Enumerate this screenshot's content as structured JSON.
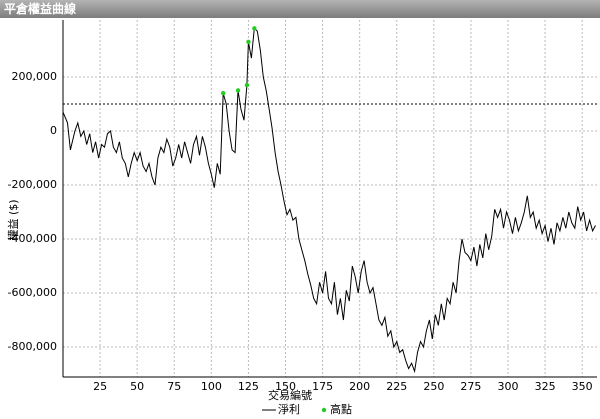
{
  "chart_data": {
    "type": "line",
    "title": "平倉權益曲線",
    "x_label": "交易編號",
    "y_label": "權益 ($)",
    "xlim": [
      0,
      360
    ],
    "ylim": [
      -911000,
      411000
    ],
    "xticks": [
      25,
      50,
      75,
      100,
      125,
      150,
      175,
      200,
      225,
      250,
      275,
      300,
      325,
      350
    ],
    "yticks": [
      {
        "value": 200000,
        "label": "200,000"
      },
      0,
      {
        "value": -200000,
        "label": "-200,000"
      },
      {
        "value": -400000,
        "label": "-400,000"
      },
      {
        "value": -600000,
        "label": "-600,000"
      },
      {
        "value": -800000,
        "label": "-800,000"
      }
    ],
    "grid": true,
    "reference_line": 100000,
    "series": [
      {
        "name": "淨利",
        "type": "line",
        "color": "#000000",
        "x": [
          0,
          3,
          5,
          8,
          10,
          12,
          14,
          16,
          18,
          20,
          22,
          24,
          26,
          28,
          30,
          32,
          34,
          36,
          38,
          40,
          42,
          44,
          46,
          48,
          50,
          52,
          54,
          56,
          58,
          60,
          62,
          64,
          66,
          68,
          70,
          72,
          74,
          76,
          78,
          80,
          82,
          84,
          86,
          88,
          90,
          92,
          94,
          96,
          98,
          100,
          102,
          104,
          106,
          108,
          110,
          112,
          114,
          116,
          118,
          120,
          122,
          124,
          125,
          127,
          129,
          131,
          133,
          135,
          137,
          139,
          141,
          143,
          145,
          147,
          149,
          151,
          153,
          155,
          157,
          159,
          161,
          163,
          165,
          167,
          169,
          171,
          173,
          175,
          177,
          179,
          181,
          183,
          185,
          187,
          189,
          191,
          193,
          195,
          197,
          199,
          201,
          203,
          205,
          207,
          209,
          211,
          213,
          215,
          217,
          219,
          221,
          223,
          225,
          227,
          229,
          231,
          233,
          235,
          237,
          239,
          241,
          243,
          245,
          247,
          249,
          251,
          253,
          255,
          257,
          259,
          261,
          263,
          265,
          267,
          269,
          271,
          273,
          275,
          277,
          279,
          281,
          283,
          285,
          287,
          289,
          291,
          293,
          295,
          297,
          299,
          301,
          303,
          305,
          307,
          309,
          311,
          313,
          315,
          317,
          319,
          321,
          323,
          325,
          327,
          329,
          331,
          333,
          335,
          337,
          339,
          341,
          343,
          345,
          347,
          349,
          351,
          353,
          355,
          357,
          359
        ],
        "values": [
          70000,
          30000,
          -70000,
          0,
          30000,
          -20000,
          0,
          -50000,
          -10000,
          -80000,
          -40000,
          -100000,
          -50000,
          -60000,
          -10000,
          0,
          -60000,
          -80000,
          -40000,
          -100000,
          -120000,
          -170000,
          -120000,
          -80000,
          -110000,
          -80000,
          -130000,
          -150000,
          -120000,
          -170000,
          -200000,
          -100000,
          -60000,
          -80000,
          -30000,
          -60000,
          -130000,
          -100000,
          -50000,
          -100000,
          -40000,
          -80000,
          -120000,
          -50000,
          -20000,
          -90000,
          -20000,
          -60000,
          -120000,
          -160000,
          -210000,
          -120000,
          -160000,
          140000,
          100000,
          0,
          -70000,
          -80000,
          150000,
          80000,
          40000,
          170000,
          330000,
          270000,
          380000,
          370000,
          300000,
          200000,
          150000,
          80000,
          10000,
          -80000,
          -150000,
          -200000,
          -260000,
          -310000,
          -290000,
          -330000,
          -320000,
          -400000,
          -440000,
          -480000,
          -530000,
          -570000,
          -620000,
          -640000,
          -560000,
          -600000,
          -520000,
          -620000,
          -640000,
          -560000,
          -680000,
          -620000,
          -700000,
          -590000,
          -630000,
          -500000,
          -540000,
          -600000,
          -520000,
          -480000,
          -560000,
          -600000,
          -580000,
          -640000,
          -700000,
          -720000,
          -690000,
          -760000,
          -740000,
          -800000,
          -780000,
          -820000,
          -810000,
          -850000,
          -880000,
          -860000,
          -890000,
          -820000,
          -780000,
          -800000,
          -740000,
          -700000,
          -770000,
          -680000,
          -720000,
          -640000,
          -700000,
          -620000,
          -640000,
          -560000,
          -600000,
          -480000,
          -400000,
          -450000,
          -460000,
          -480000,
          -430000,
          -500000,
          -420000,
          -470000,
          -380000,
          -440000,
          -390000,
          -290000,
          -320000,
          -290000,
          -360000,
          -300000,
          -330000,
          -380000,
          -320000,
          -370000,
          -340000,
          -300000,
          -240000,
          -320000,
          -300000,
          -360000,
          -330000,
          -380000,
          -350000,
          -410000,
          -360000,
          -420000,
          -340000,
          -370000,
          -320000,
          -360000,
          -300000,
          -340000,
          -360000,
          -280000,
          -330000,
          -300000,
          -370000,
          -330000,
          -370000,
          -350000
        ]
      },
      {
        "name": "高點",
        "type": "scatter",
        "color": "#22cc22",
        "x": [
          108,
          118,
          124,
          125,
          129
        ],
        "values": [
          140000,
          150000,
          170000,
          330000,
          380000
        ]
      }
    ]
  }
}
